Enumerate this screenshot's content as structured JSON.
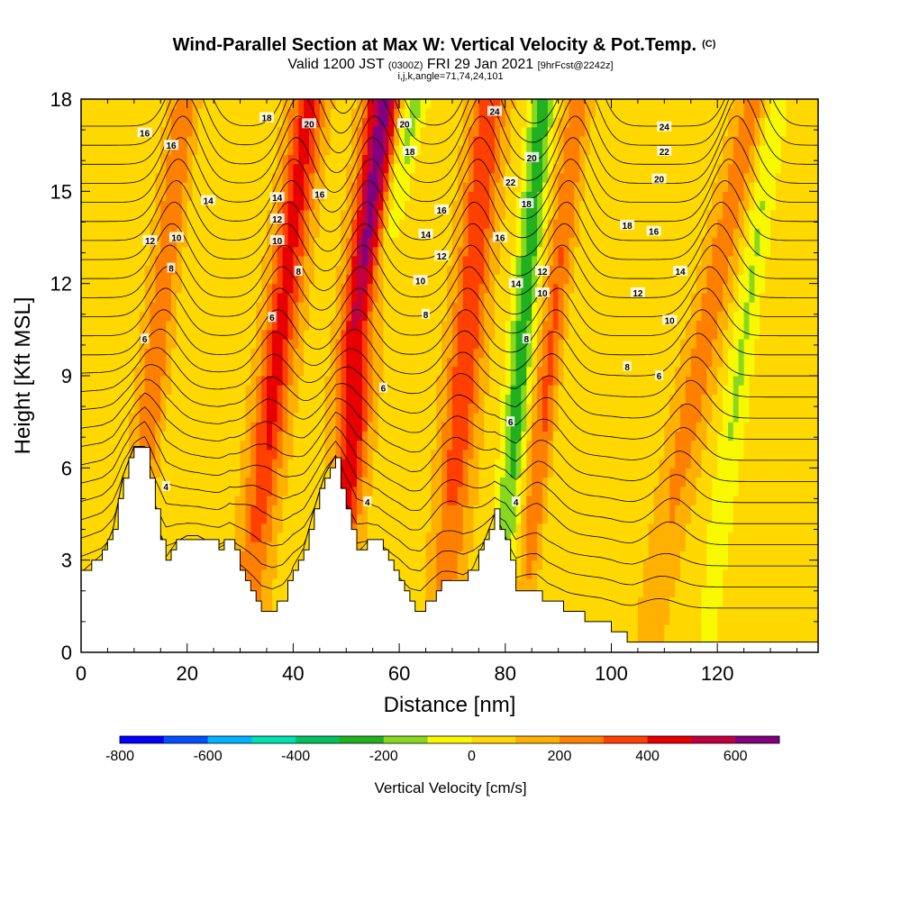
{
  "header": {
    "title": "Wind-Parallel Section at Max W: Vertical Velocity & Pot.Temp.",
    "title_mark": "(C)",
    "valid_prefix": "Valid 1200 JST",
    "valid_z": "(0300Z)",
    "valid_date": "FRI 29 Jan 2021",
    "forecast": "[9hrFcst@2242z]",
    "indices": "i,j,k,angle=71,74,24,101"
  },
  "chart_data": {
    "type": "heatmap",
    "xlabel": "Distance [nm]",
    "ylabel": "Height [Kft MSL]",
    "xlim": [
      0,
      139
    ],
    "ylim": [
      0,
      18
    ],
    "x_ticks": [
      0,
      20,
      40,
      60,
      80,
      100,
      120
    ],
    "y_ticks": [
      0,
      3,
      6,
      9,
      12,
      15,
      18
    ],
    "grid": false,
    "colorbar": {
      "label": "Vertical Velocity [cm/s]",
      "tick_values": [
        -800,
        -600,
        -400,
        -200,
        0,
        200,
        400,
        600
      ],
      "bounds": [
        -800,
        700
      ],
      "bin_width": 100,
      "colors": [
        "#0000ff",
        "#0050ff",
        "#00b4ff",
        "#00e0b0",
        "#00c060",
        "#20b020",
        "#88d820",
        "#f8f800",
        "#ffd800",
        "#ffb000",
        "#ff8000",
        "#ff4000",
        "#e80000",
        "#c00040",
        "#800080"
      ]
    },
    "terrain_kft": [
      [
        0,
        2.6
      ],
      [
        2,
        2.9
      ],
      [
        4,
        3.2
      ],
      [
        6,
        4.0
      ],
      [
        8,
        5.8
      ],
      [
        10,
        6.7
      ],
      [
        12,
        6.7
      ],
      [
        14,
        4.5
      ],
      [
        16,
        3.1
      ],
      [
        18,
        3.6
      ],
      [
        20,
        3.8
      ],
      [
        22,
        3.8
      ],
      [
        24,
        3.6
      ],
      [
        26,
        3.4
      ],
      [
        28,
        3.6
      ],
      [
        30,
        2.8
      ],
      [
        32,
        2.0
      ],
      [
        34,
        1.3
      ],
      [
        36,
        1.3
      ],
      [
        38,
        1.8
      ],
      [
        40,
        2.8
      ],
      [
        42,
        3.4
      ],
      [
        44,
        4.7
      ],
      [
        46,
        5.8
      ],
      [
        48,
        6.4
      ],
      [
        50,
        4.5
      ],
      [
        52,
        3.2
      ],
      [
        54,
        3.6
      ],
      [
        56,
        3.6
      ],
      [
        58,
        3.0
      ],
      [
        60,
        2.4
      ],
      [
        62,
        1.6
      ],
      [
        64,
        1.3
      ],
      [
        66,
        1.8
      ],
      [
        68,
        2.2
      ],
      [
        70,
        2.2
      ],
      [
        72,
        2.2
      ],
      [
        74,
        2.8
      ],
      [
        76,
        3.6
      ],
      [
        78,
        4.5
      ],
      [
        80,
        3.8
      ],
      [
        82,
        2.0
      ],
      [
        84,
        2.0
      ],
      [
        86,
        2.0
      ],
      [
        88,
        1.6
      ],
      [
        90,
        1.5
      ],
      [
        92,
        1.3
      ],
      [
        94,
        1.2
      ],
      [
        96,
        1.1
      ],
      [
        98,
        1.0
      ],
      [
        100,
        0.8
      ],
      [
        102,
        0.5
      ],
      [
        104,
        0.3
      ],
      [
        110,
        0.3
      ],
      [
        120,
        0.3
      ],
      [
        130,
        0.3
      ],
      [
        139,
        0.3
      ]
    ],
    "updraft_bands": [
      {
        "x_bottom": 10,
        "x_top": 21,
        "w_peak": 420
      },
      {
        "x_bottom": 31,
        "x_top": 43,
        "w_peak": 380
      },
      {
        "x_bottom": 47,
        "x_top": 57,
        "w_peak": 600
      },
      {
        "x_bottom": 68,
        "x_top": 77,
        "w_peak": 330
      },
      {
        "x_bottom": 84,
        "x_top": 95,
        "w_peak": 380
      },
      {
        "x_bottom": 107,
        "x_top": 127,
        "w_peak": 200
      }
    ],
    "downdraft_bands": [
      {
        "x_bottom": 11,
        "x_top": 22,
        "w_peak": -300
      },
      {
        "x_bottom": 42,
        "x_top": 63,
        "w_peak": -220
      },
      {
        "x_bottom": 79,
        "x_top": 87,
        "w_peak": -320
      },
      {
        "x_bottom": 86,
        "x_top": 96,
        "w_peak": -260
      },
      {
        "x_bottom": 118,
        "x_top": 131,
        "w_peak": -170
      }
    ],
    "theta_contour_levels_c": [
      4,
      6,
      8,
      10,
      12,
      14,
      16,
      18,
      20,
      22,
      24
    ],
    "contour_labels": [
      {
        "text": "16",
        "x": 12,
        "y": 16.9
      },
      {
        "text": "16",
        "x": 17,
        "y": 16.5
      },
      {
        "text": "14",
        "x": 24,
        "y": 14.7
      },
      {
        "text": "12",
        "x": 13,
        "y": 13.4
      },
      {
        "text": "10",
        "x": 18,
        "y": 13.5
      },
      {
        "text": "8",
        "x": 17,
        "y": 12.5
      },
      {
        "text": "6",
        "x": 12,
        "y": 10.2
      },
      {
        "text": "4",
        "x": 16,
        "y": 5.4
      },
      {
        "text": "18",
        "x": 35,
        "y": 17.4
      },
      {
        "text": "20",
        "x": 43,
        "y": 17.2
      },
      {
        "text": "14",
        "x": 37,
        "y": 14.8
      },
      {
        "text": "12",
        "x": 37,
        "y": 14.1
      },
      {
        "text": "16",
        "x": 45,
        "y": 14.9
      },
      {
        "text": "10",
        "x": 37,
        "y": 13.4
      },
      {
        "text": "8",
        "x": 41,
        "y": 12.4
      },
      {
        "text": "6",
        "x": 36,
        "y": 10.9
      },
      {
        "text": "20",
        "x": 61,
        "y": 17.2
      },
      {
        "text": "18",
        "x": 62,
        "y": 16.3
      },
      {
        "text": "16",
        "x": 68,
        "y": 14.4
      },
      {
        "text": "14",
        "x": 65,
        "y": 13.6
      },
      {
        "text": "12",
        "x": 68,
        "y": 12.9
      },
      {
        "text": "10",
        "x": 64,
        "y": 12.1
      },
      {
        "text": "8",
        "x": 65,
        "y": 11.0
      },
      {
        "text": "6",
        "x": 57,
        "y": 8.6
      },
      {
        "text": "4",
        "x": 54,
        "y": 4.9
      },
      {
        "text": "24",
        "x": 78,
        "y": 17.6
      },
      {
        "text": "22",
        "x": 81,
        "y": 15.3
      },
      {
        "text": "20",
        "x": 85,
        "y": 16.1
      },
      {
        "text": "18",
        "x": 84,
        "y": 14.6
      },
      {
        "text": "16",
        "x": 79,
        "y": 13.5
      },
      {
        "text": "14",
        "x": 82,
        "y": 12.0
      },
      {
        "text": "12",
        "x": 87,
        "y": 12.4
      },
      {
        "text": "10",
        "x": 87,
        "y": 11.7
      },
      {
        "text": "8",
        "x": 84,
        "y": 10.2
      },
      {
        "text": "6",
        "x": 81,
        "y": 7.5
      },
      {
        "text": "4",
        "x": 82,
        "y": 4.9
      },
      {
        "text": "24",
        "x": 110,
        "y": 17.1
      },
      {
        "text": "22",
        "x": 110,
        "y": 16.3
      },
      {
        "text": "20",
        "x": 109,
        "y": 15.4
      },
      {
        "text": "18",
        "x": 103,
        "y": 13.9
      },
      {
        "text": "16",
        "x": 108,
        "y": 13.7
      },
      {
        "text": "14",
        "x": 113,
        "y": 12.4
      },
      {
        "text": "12",
        "x": 105,
        "y": 11.7
      },
      {
        "text": "10",
        "x": 111,
        "y": 10.8
      },
      {
        "text": "8",
        "x": 103,
        "y": 9.3
      },
      {
        "text": "6",
        "x": 109,
        "y": 9.0
      }
    ]
  }
}
